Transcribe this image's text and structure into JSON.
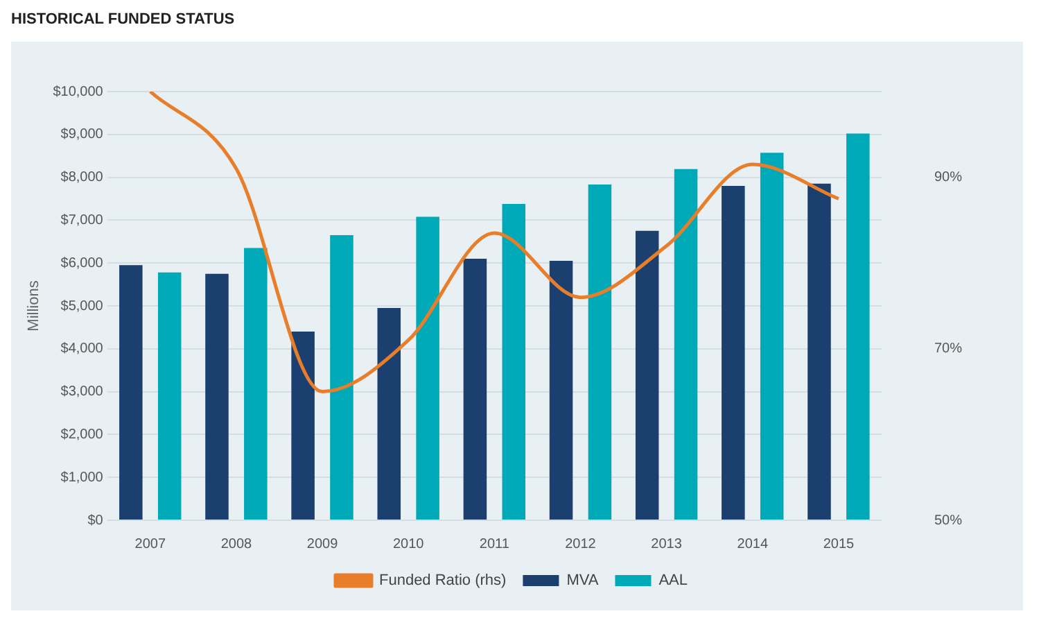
{
  "chart_data": {
    "type": "bar",
    "title": "HISTORICAL FUNDED STATUS",
    "ylabel": "Millions",
    "categories": [
      "2007",
      "2008",
      "2009",
      "2010",
      "2011",
      "2012",
      "2013",
      "2014",
      "2015"
    ],
    "series": [
      {
        "name": "MVA",
        "color": "#1b3f6e",
        "values": [
          5950,
          5750,
          4400,
          4950,
          6100,
          6050,
          6750,
          7800,
          7850
        ]
      },
      {
        "name": "AAL",
        "color": "#00a9b7",
        "values": [
          5780,
          6350,
          6650,
          7080,
          7380,
          7830,
          8190,
          8570,
          9020
        ]
      },
      {
        "name": "Funded Ratio (rhs)",
        "type": "line",
        "axis": "y2",
        "color": "#e87e2a",
        "values": [
          100,
          91,
          65,
          71,
          83.5,
          76,
          82,
          91.5,
          87.5
        ]
      }
    ],
    "ylim": [
      0,
      10000
    ],
    "yticks": [
      {
        "value": 0,
        "label": "$0"
      },
      {
        "value": 1000,
        "label": "$1,000"
      },
      {
        "value": 2000,
        "label": "$2,000"
      },
      {
        "value": 3000,
        "label": "$3,000"
      },
      {
        "value": 4000,
        "label": "$4,000"
      },
      {
        "value": 5000,
        "label": "$5,000"
      },
      {
        "value": 6000,
        "label": "$6,000"
      },
      {
        "value": 7000,
        "label": "$7,000"
      },
      {
        "value": 8000,
        "label": "$8,000"
      },
      {
        "value": 9000,
        "label": "$9,000"
      },
      {
        "value": 10000,
        "label": "$10,000"
      }
    ],
    "y2lim": [
      50,
      100
    ],
    "y2ticks": [
      {
        "value": 50,
        "label": "50%"
      },
      {
        "value": 70,
        "label": "70%"
      },
      {
        "value": 90,
        "label": "90%"
      }
    ],
    "grid": "y",
    "legend": "bottom",
    "marker": "none"
  }
}
